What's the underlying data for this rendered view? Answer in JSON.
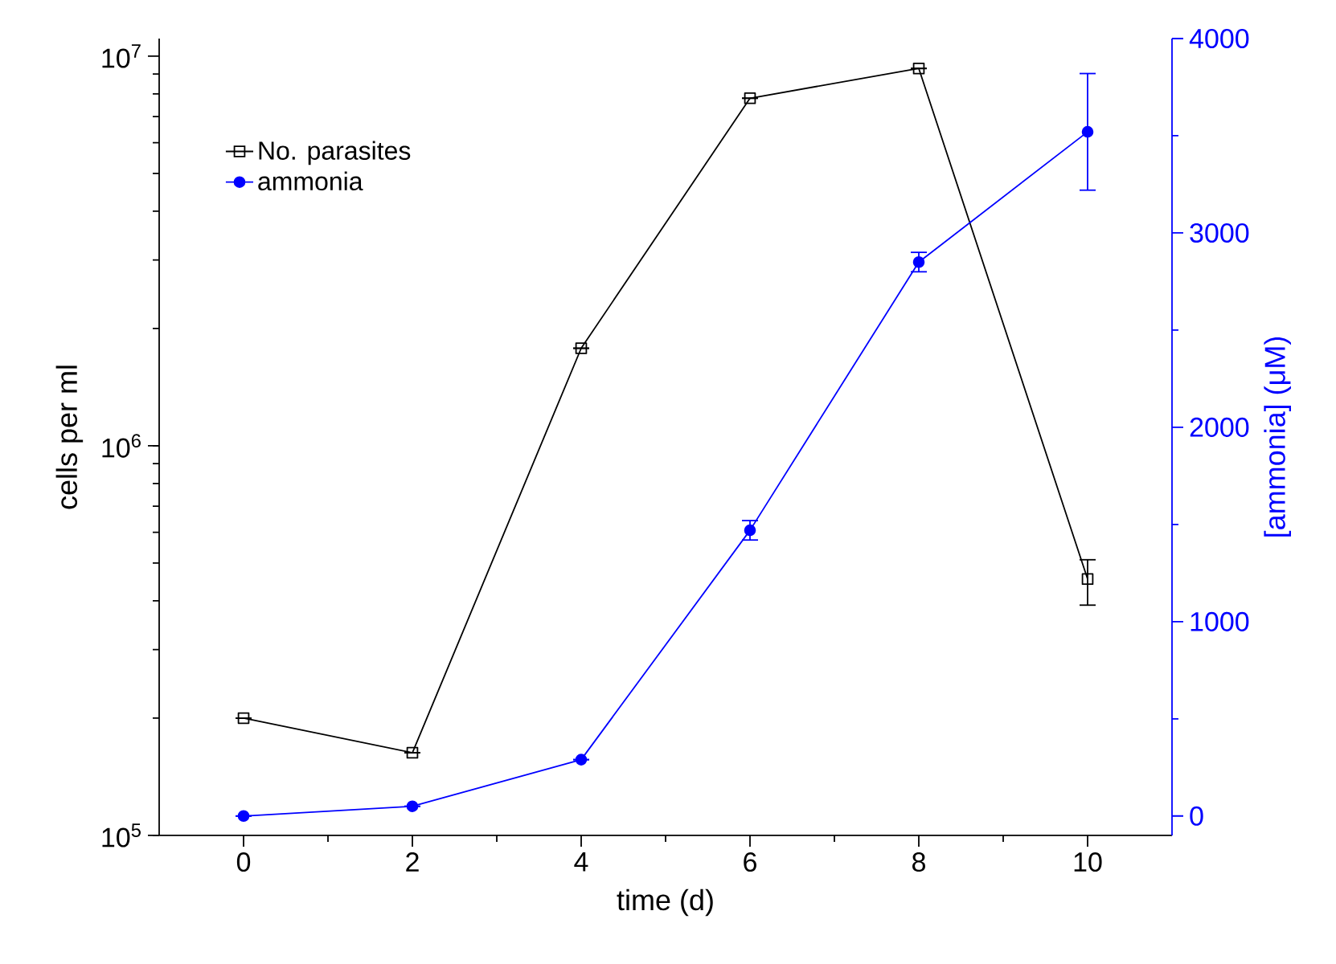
{
  "chart_data": {
    "type": "line",
    "xlabel": "time (d)",
    "ylabel": "cells per ml",
    "y2label": "[ammonia] (μM)",
    "x": [
      0,
      2,
      4,
      6,
      8,
      10
    ],
    "xlim": [
      -1,
      11
    ],
    "xticks": [
      0,
      2,
      4,
      6,
      8,
      10
    ],
    "ylim": [
      100000,
      11100000
    ],
    "log": "y",
    "yticks": [
      {
        "value": 100000,
        "label": "10$^{5}$"
      },
      {
        "value": 1000000,
        "label": "10$^{6}$"
      },
      {
        "value": 10000000,
        "label": "10$^{7}$"
      }
    ],
    "y2lim": [
      -100,
      4000
    ],
    "y2ticks": [
      0,
      1000,
      2000,
      3000,
      4000
    ],
    "grid": false,
    "legend": "top left",
    "line_style": "solid",
    "series": [
      {
        "name": "No. parasites",
        "color": "#000000",
        "marker": "square",
        "values": [
          200000,
          163000,
          1780000,
          7800000,
          9300000,
          455000
        ],
        "errors": [
          null,
          null,
          null,
          null,
          null,
          [
            390000,
            510000
          ]
        ]
      },
      {
        "name": "ammonia",
        "color": "#0000ff",
        "marker": "circle",
        "axis": "y2",
        "values": [
          0,
          50,
          290,
          1470,
          2850,
          3520
        ],
        "errors": [
          null,
          null,
          null,
          50,
          50,
          300
        ]
      }
    ]
  }
}
